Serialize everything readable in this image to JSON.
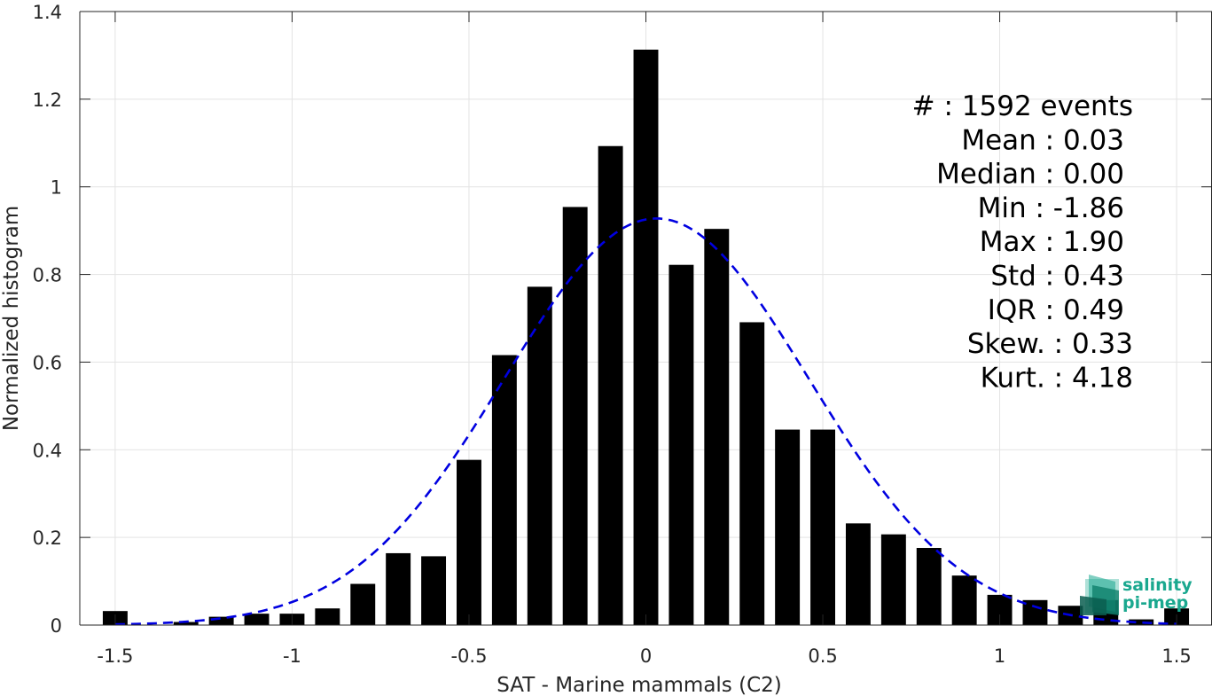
{
  "chart_data": {
    "type": "bar",
    "xlabel": "SAT - Marine mammals (C2)",
    "ylabel": "Normalized histogram",
    "xlim": [
      -1.6,
      1.6
    ],
    "ylim": [
      0,
      1.4
    ],
    "xticks": [
      -1.5,
      -1,
      -0.5,
      0,
      0.5,
      1,
      1.5
    ],
    "xtick_labels": [
      "-1.5",
      "-1",
      "-0.5",
      "0",
      "0.5",
      "1",
      "1.5"
    ],
    "yticks": [
      0,
      0.2,
      0.4,
      0.6,
      0.8,
      1,
      1.2,
      1.4
    ],
    "ytick_labels": [
      "0",
      "0.2",
      "0.4",
      "0.6",
      "0.8",
      "1",
      "1.2",
      "1.4"
    ],
    "grid": true,
    "bar_color": "#000000",
    "bar_width": 0.07,
    "bins": [
      {
        "x": -1.5,
        "y": 0.032
      },
      {
        "x": -1.4,
        "y": 0.0
      },
      {
        "x": -1.3,
        "y": 0.007
      },
      {
        "x": -1.2,
        "y": 0.019
      },
      {
        "x": -1.1,
        "y": 0.026
      },
      {
        "x": -1.0,
        "y": 0.026
      },
      {
        "x": -0.9,
        "y": 0.038
      },
      {
        "x": -0.8,
        "y": 0.094
      },
      {
        "x": -0.7,
        "y": 0.164
      },
      {
        "x": -0.6,
        "y": 0.157
      },
      {
        "x": -0.5,
        "y": 0.377
      },
      {
        "x": -0.4,
        "y": 0.616
      },
      {
        "x": -0.3,
        "y": 0.772
      },
      {
        "x": -0.2,
        "y": 0.954
      },
      {
        "x": -0.1,
        "y": 1.093
      },
      {
        "x": 0.0,
        "y": 1.313
      },
      {
        "x": 0.1,
        "y": 0.822
      },
      {
        "x": 0.2,
        "y": 0.904
      },
      {
        "x": 0.3,
        "y": 0.691
      },
      {
        "x": 0.4,
        "y": 0.446
      },
      {
        "x": 0.5,
        "y": 0.446
      },
      {
        "x": 0.6,
        "y": 0.232
      },
      {
        "x": 0.7,
        "y": 0.207
      },
      {
        "x": 0.8,
        "y": 0.176
      },
      {
        "x": 0.9,
        "y": 0.113
      },
      {
        "x": 1.0,
        "y": 0.069
      },
      {
        "x": 1.1,
        "y": 0.057
      },
      {
        "x": 1.2,
        "y": 0.044
      },
      {
        "x": 1.3,
        "y": 0.057
      },
      {
        "x": 1.4,
        "y": 0.013
      },
      {
        "x": 1.5,
        "y": 0.038
      }
    ],
    "fit_curve": {
      "style": "dashed",
      "color": "#0000e0",
      "mean": 0.03,
      "std": 0.43,
      "x_range": [
        -1.5,
        1.5
      ]
    },
    "annotation_lines": [
      "#  : 1592 events",
      "Mean : 0.03",
      "Median : 0.00",
      "Min : -1.86",
      "Max : 1.90",
      "Std : 0.43",
      "IQR : 0.49",
      "Skew. : 0.33",
      "Kurt. : 4.18"
    ]
  },
  "logo": {
    "line1": "salinity",
    "line2": "pi-mep",
    "color": "#1aa88f"
  }
}
